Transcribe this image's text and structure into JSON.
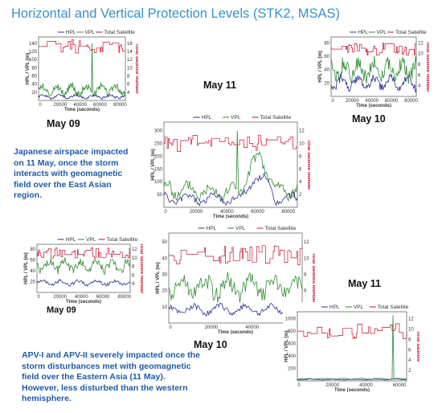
{
  "title": "Horizontal and Vertical Protection Levels (STK2, MSAS)",
  "day_labels": {
    "top_left": "May 09",
    "top_center": "May 11",
    "top_right": "May 10",
    "bottom_left": "May 09",
    "bottom_center": "May 10",
    "bottom_right": "May 11"
  },
  "text_block_1": [
    "Japanese airspace impacted",
    "on 11 May, once the storm",
    "interacts with geomagnetic",
    "field over the East Asian",
    "region."
  ],
  "text_block_2": [
    "APV-I and APV-II severely impacted once the",
    "storm disturbances met with geomagnetic",
    "field over the Eastern Asia (11 May).",
    "However, less disturbed than the western",
    "hemisphere."
  ],
  "legend": {
    "hpl": "HPL",
    "vpl": "VPL",
    "sat": "Total Satellite"
  },
  "colors": {
    "title": "#3a8fc9",
    "hpl": "#2b2f8f",
    "vpl": "#2e8b2e",
    "sat": "#c8102e",
    "text_blue": "#1e5aa8"
  },
  "chart_data": [
    {
      "id": "c1",
      "type": "line",
      "xlabel": "Time (seconds)",
      "ylabel": "HPL / VPL (m)",
      "y2label": "Total Satellite Number",
      "xticks": [
        "0",
        "20000",
        "40000",
        "60000",
        "80000"
      ],
      "yticks": [
        "20",
        "40",
        "60",
        "80",
        "100",
        "120",
        "140"
      ],
      "y2ticks": [
        "4",
        "6",
        "8",
        "10",
        "12",
        "14",
        "16"
      ],
      "ylim": [
        0,
        150
      ],
      "y2lim": [
        2,
        18
      ],
      "series": [
        {
          "name": "HPL"
        },
        {
          "name": "VPL"
        },
        {
          "name": "Total Satellite"
        }
      ]
    },
    {
      "id": "c2",
      "type": "line",
      "xlabel": "Time (seconds)",
      "ylabel": "HPL / VPL (m)",
      "y2label": "Total Satellite Number",
      "xticks": [
        "0",
        "20000",
        "40000",
        "60000",
        "80000"
      ],
      "yticks": [
        "50",
        "100",
        "150",
        "200",
        "250",
        "300"
      ],
      "y2ticks": [
        "2",
        "4",
        "6",
        "8",
        "10",
        "12"
      ],
      "ylim": [
        0,
        300
      ],
      "y2lim": [
        1,
        14
      ],
      "series": [
        {
          "name": "HPL"
        },
        {
          "name": "VPL"
        },
        {
          "name": "Total Satellite"
        }
      ]
    },
    {
      "id": "c3",
      "type": "line",
      "xlabel": "Time (seconds)",
      "ylabel": "HPL / VPL (m)",
      "y2label": "Total Satellite Number",
      "xticks": [
        "0",
        "20000",
        "40000",
        "60000",
        "80000"
      ],
      "yticks": [
        "20",
        "40",
        "60",
        "80"
      ],
      "y2ticks": [
        "4",
        "6",
        "8",
        "10",
        "12"
      ],
      "ylim": [
        0,
        90
      ],
      "y2lim": [
        2,
        14
      ],
      "series": [
        {
          "name": "HPL"
        },
        {
          "name": "VPL"
        },
        {
          "name": "Total Satellite"
        }
      ]
    },
    {
      "id": "c4",
      "type": "line",
      "xlabel": "Time (seconds)",
      "ylabel": "HPL / VPL (m)",
      "y2label": "Total Satellite Number",
      "xticks": [
        "0",
        "20000",
        "40000",
        "60000",
        "80000"
      ],
      "yticks": [
        "20",
        "40",
        "60",
        "80"
      ],
      "y2ticks": [
        "4",
        "6",
        "8",
        "10",
        "12"
      ],
      "ylim": [
        0,
        90
      ],
      "y2lim": [
        2,
        14
      ],
      "series": [
        {
          "name": "HPL"
        },
        {
          "name": "VPL"
        },
        {
          "name": "Total Satellite"
        }
      ]
    },
    {
      "id": "c5",
      "type": "line",
      "xlabel": "Time (seconds)",
      "ylabel": "HPL / VPL (m)",
      "y2label": "Total Satellite Number",
      "xticks": [
        "0",
        "20000",
        "40000",
        "60000"
      ],
      "yticks": [
        "10",
        "20",
        "30",
        "40",
        "50"
      ],
      "y2ticks": [
        "4",
        "6",
        "8",
        "10",
        "12"
      ],
      "ylim": [
        8,
        55
      ],
      "y2lim": [
        2,
        14
      ],
      "series": [
        {
          "name": "HPL"
        },
        {
          "name": "VPL"
        },
        {
          "name": "Total Satellite"
        }
      ]
    },
    {
      "id": "c6",
      "type": "line",
      "xlabel": "Time (seconds)",
      "ylabel": "HPL / VPL (m)",
      "y2label": "Total Satellite",
      "xticks": [
        "0",
        "20000",
        "40000",
        "60000"
      ],
      "yticks": [
        "200",
        "400",
        "600",
        "800",
        "1000"
      ],
      "y2ticks": [
        "2",
        "4",
        "6",
        "8",
        "10",
        "12"
      ],
      "ylim": [
        0,
        1050
      ],
      "y2lim": [
        0,
        14
      ],
      "series": [
        {
          "name": "HPL"
        },
        {
          "name": "VPL"
        },
        {
          "name": "Total Satellite"
        }
      ]
    }
  ]
}
